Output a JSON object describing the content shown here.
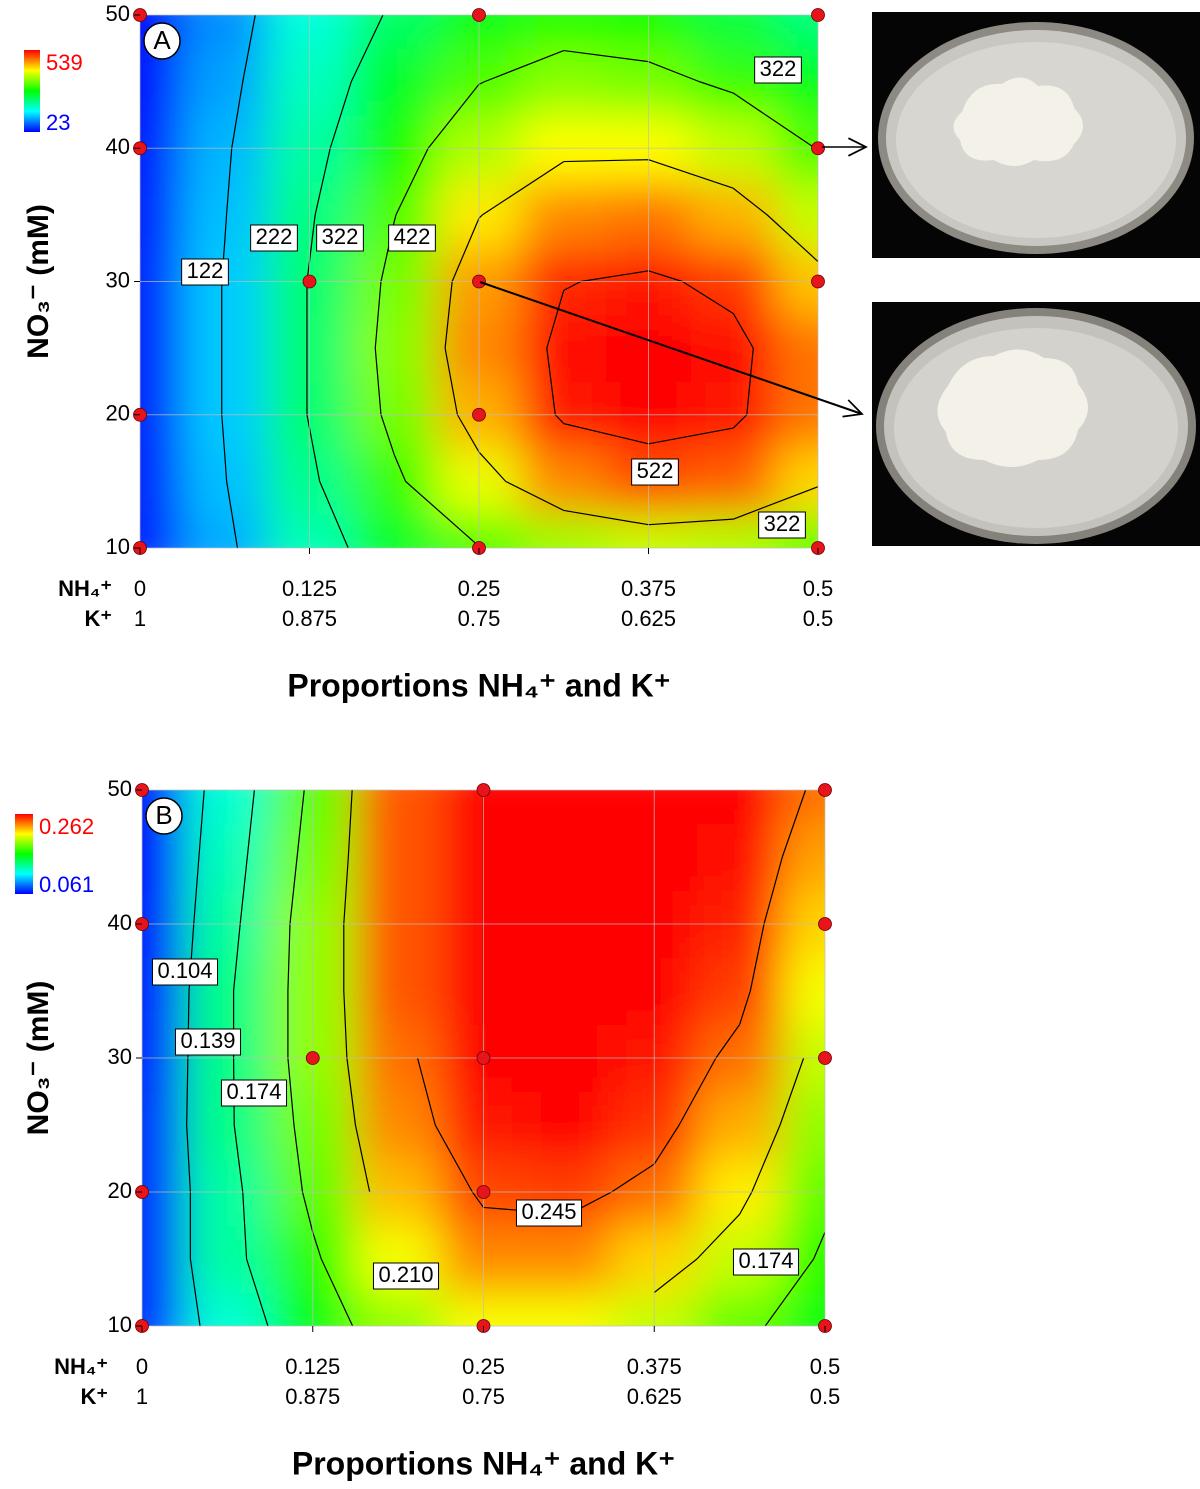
{
  "chart_data": [
    {
      "type": "contour",
      "panel_label": "A",
      "xlabel": "Proportions NH₄⁺ and K⁺",
      "ylabel": "NO₃⁻ (mM)",
      "xlim": [
        0,
        0.5
      ],
      "ylim": [
        10,
        50
      ],
      "xticks": [
        0,
        0.125,
        0.25,
        0.375,
        0.5
      ],
      "xtick_row_labels": [
        "NH₄⁺",
        "K⁺"
      ],
      "xticks_k": [
        1,
        0.875,
        0.75,
        0.625,
        0.5
      ],
      "yticks": [
        10,
        20,
        30,
        40,
        50
      ],
      "grid": true,
      "grid_x": [
        0,
        0.0625,
        0.125,
        0.1875,
        0.25,
        0.3125,
        0.375,
        0.4375,
        0.5
      ],
      "grid_y": [
        10,
        15,
        20,
        25,
        30,
        35,
        40,
        45,
        50
      ],
      "z": [
        [
          40,
          110,
          190,
          260,
          320,
          360,
          380,
          370,
          330
        ],
        [
          40,
          120,
          210,
          310,
          400,
          470,
          500,
          490,
          430
        ],
        [
          40,
          125,
          225,
          340,
          450,
          530,
          539,
          530,
          480
        ],
        [
          40,
          125,
          225,
          350,
          470,
          535,
          539,
          535,
          480
        ],
        [
          40,
          125,
          225,
          340,
          460,
          520,
          530,
          510,
          440
        ],
        [
          38,
          120,
          215,
          320,
          420,
          470,
          480,
          450,
          380
        ],
        [
          35,
          115,
          200,
          290,
          370,
          410,
          410,
          380,
          320
        ],
        [
          30,
          105,
          185,
          260,
          320,
          350,
          340,
          310,
          270
        ],
        [
          25,
          95,
          170,
          230,
          270,
          290,
          280,
          250,
          220
        ]
      ],
      "zlim": [
        23,
        539
      ],
      "colormap": [
        "#0000ff",
        "#00ffff",
        "#00ff00",
        "#ffff00",
        "#ff0000"
      ],
      "contours": [
        122,
        222,
        322,
        422,
        522
      ],
      "contour_labels": [
        322,
        222,
        322,
        422,
        122,
        522,
        322
      ],
      "points": {
        "color": "#e8141b",
        "x": [
          0,
          0,
          0,
          0,
          0.125,
          0.25,
          0.25,
          0.25,
          0.25,
          0.5,
          0.5,
          0.5,
          0.5
        ],
        "y": [
          50,
          40,
          20,
          10,
          30,
          50,
          30,
          20,
          10,
          50,
          40,
          30,
          10
        ]
      }
    },
    {
      "type": "contour",
      "panel_label": "B",
      "xlabel": "Proportions NH₄⁺ and K⁺",
      "ylabel": "NO₃⁻ (mM)",
      "xlim": [
        0,
        0.5
      ],
      "ylim": [
        10,
        50
      ],
      "xticks": [
        0,
        0.125,
        0.25,
        0.375,
        0.5
      ],
      "xtick_row_labels": [
        "NH₄⁺",
        "K⁺"
      ],
      "xticks_k": [
        1,
        0.875,
        0.75,
        0.625,
        0.5
      ],
      "yticks": [
        10,
        20,
        30,
        40,
        50
      ],
      "grid": true,
      "grid_x": [
        0,
        0.0625,
        0.125,
        0.1875,
        0.25,
        0.3125,
        0.375,
        0.4375,
        0.5
      ],
      "grid_y": [
        10,
        15,
        20,
        25,
        30,
        35,
        40,
        45,
        50
      ],
      "z": [
        [
          0.07,
          0.12,
          0.16,
          0.19,
          0.21,
          0.21,
          0.2,
          0.18,
          0.16
        ],
        [
          0.07,
          0.13,
          0.17,
          0.21,
          0.235,
          0.235,
          0.22,
          0.2,
          0.17
        ],
        [
          0.07,
          0.13,
          0.18,
          0.225,
          0.248,
          0.25,
          0.24,
          0.215,
          0.18
        ],
        [
          0.07,
          0.135,
          0.185,
          0.235,
          0.258,
          0.262,
          0.252,
          0.228,
          0.19
        ],
        [
          0.068,
          0.135,
          0.19,
          0.24,
          0.262,
          0.262,
          0.258,
          0.24,
          0.2
        ],
        [
          0.066,
          0.135,
          0.19,
          0.245,
          0.262,
          0.262,
          0.262,
          0.25,
          0.21
        ],
        [
          0.064,
          0.13,
          0.19,
          0.245,
          0.262,
          0.262,
          0.262,
          0.255,
          0.22
        ],
        [
          0.062,
          0.125,
          0.185,
          0.245,
          0.262,
          0.262,
          0.262,
          0.26,
          0.23
        ],
        [
          0.061,
          0.12,
          0.18,
          0.245,
          0.262,
          0.262,
          0.262,
          0.262,
          0.24
        ]
      ],
      "zlim": [
        0.061,
        0.262
      ],
      "colormap": [
        "#0000ff",
        "#00ffff",
        "#00ff00",
        "#ffff00",
        "#ff0000"
      ],
      "contours": [
        0.104,
        0.139,
        0.174,
        0.21,
        0.245
      ],
      "contour_labels": [
        0.104,
        0.139,
        0.174,
        0.245,
        {
          "value": 0.21,
          "label": "0.210"
        },
        0.174
      ],
      "points": {
        "color": "#e8141b",
        "x": [
          0,
          0,
          0,
          0,
          0.125,
          0.25,
          0.25,
          0.25,
          0.25,
          0.5,
          0.5,
          0.5,
          0.5
        ],
        "y": [
          50,
          40,
          20,
          10,
          30,
          50,
          30,
          20,
          10,
          50,
          40,
          30,
          10
        ]
      }
    }
  ]
}
